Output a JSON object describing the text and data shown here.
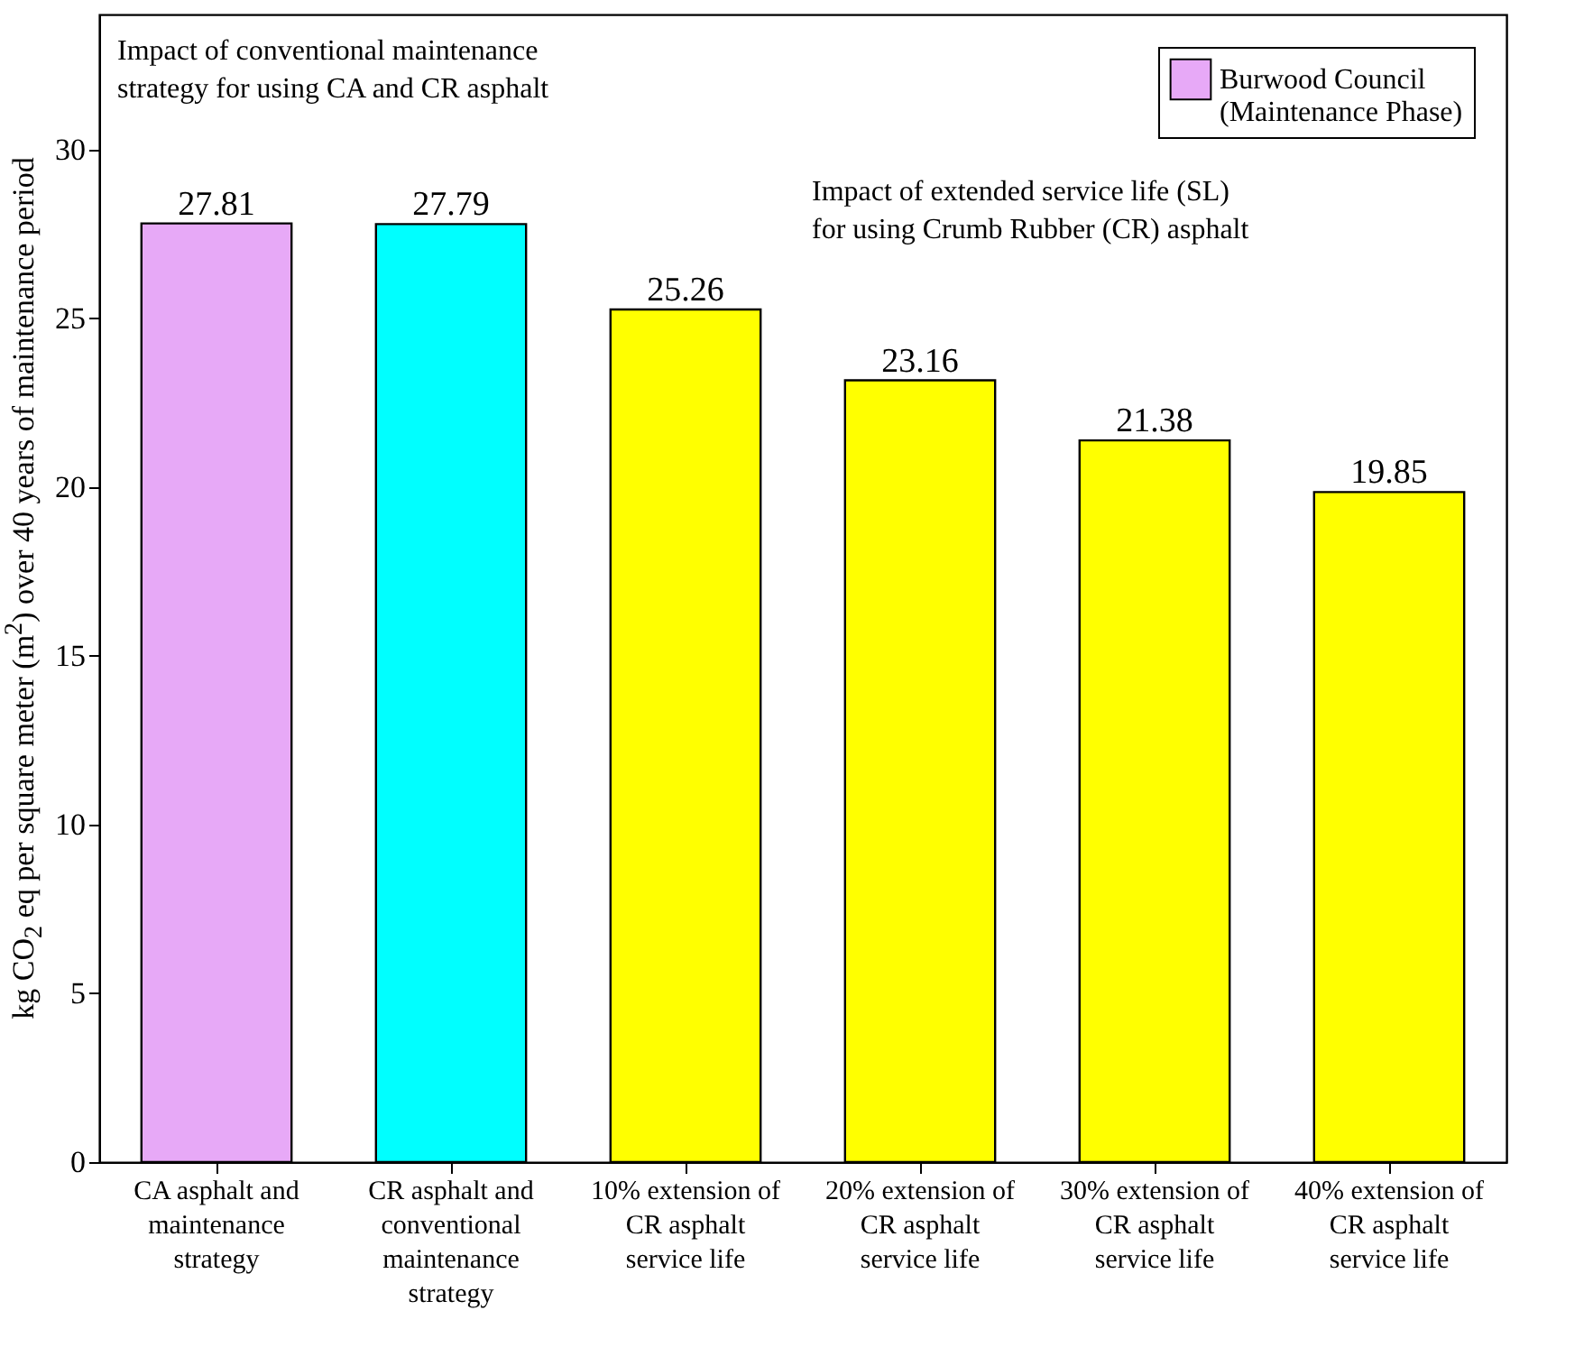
{
  "chart_data": {
    "type": "bar",
    "categories": [
      "CA asphalt and maintenance strategy",
      "CR asphalt and conventional maintenance strategy",
      "10% extension of CR asphalt service life",
      "20% extension of CR asphalt service life",
      "30% extension of CR asphalt service life",
      "40% extension of CR asphalt service life"
    ],
    "series": [
      {
        "name": "Burwood Council (Maintenance Phase)",
        "colors": [
          "#e7a9f7",
          "#00ffff",
          "#ffff00",
          "#ffff00",
          "#ffff00",
          "#ffff00"
        ],
        "values": [
          27.81,
          27.79,
          25.26,
          23.16,
          21.38,
          19.85
        ]
      }
    ],
    "ylabel": "kg CO$_{2}$ eq per square meter (m$^{2}$) over 40 years of maintenance period",
    "ylim": [
      0,
      34
    ],
    "yticks": [
      0,
      5,
      10,
      15,
      20,
      25,
      30
    ],
    "data_labels": true,
    "legend": "top right",
    "grid": false,
    "annotations": [
      "Impact of conventional maintenance strategy for using CA and CR asphalt",
      "Impact of extended service life (SL) for using Crumb Rubber (CR) asphalt"
    ]
  }
}
